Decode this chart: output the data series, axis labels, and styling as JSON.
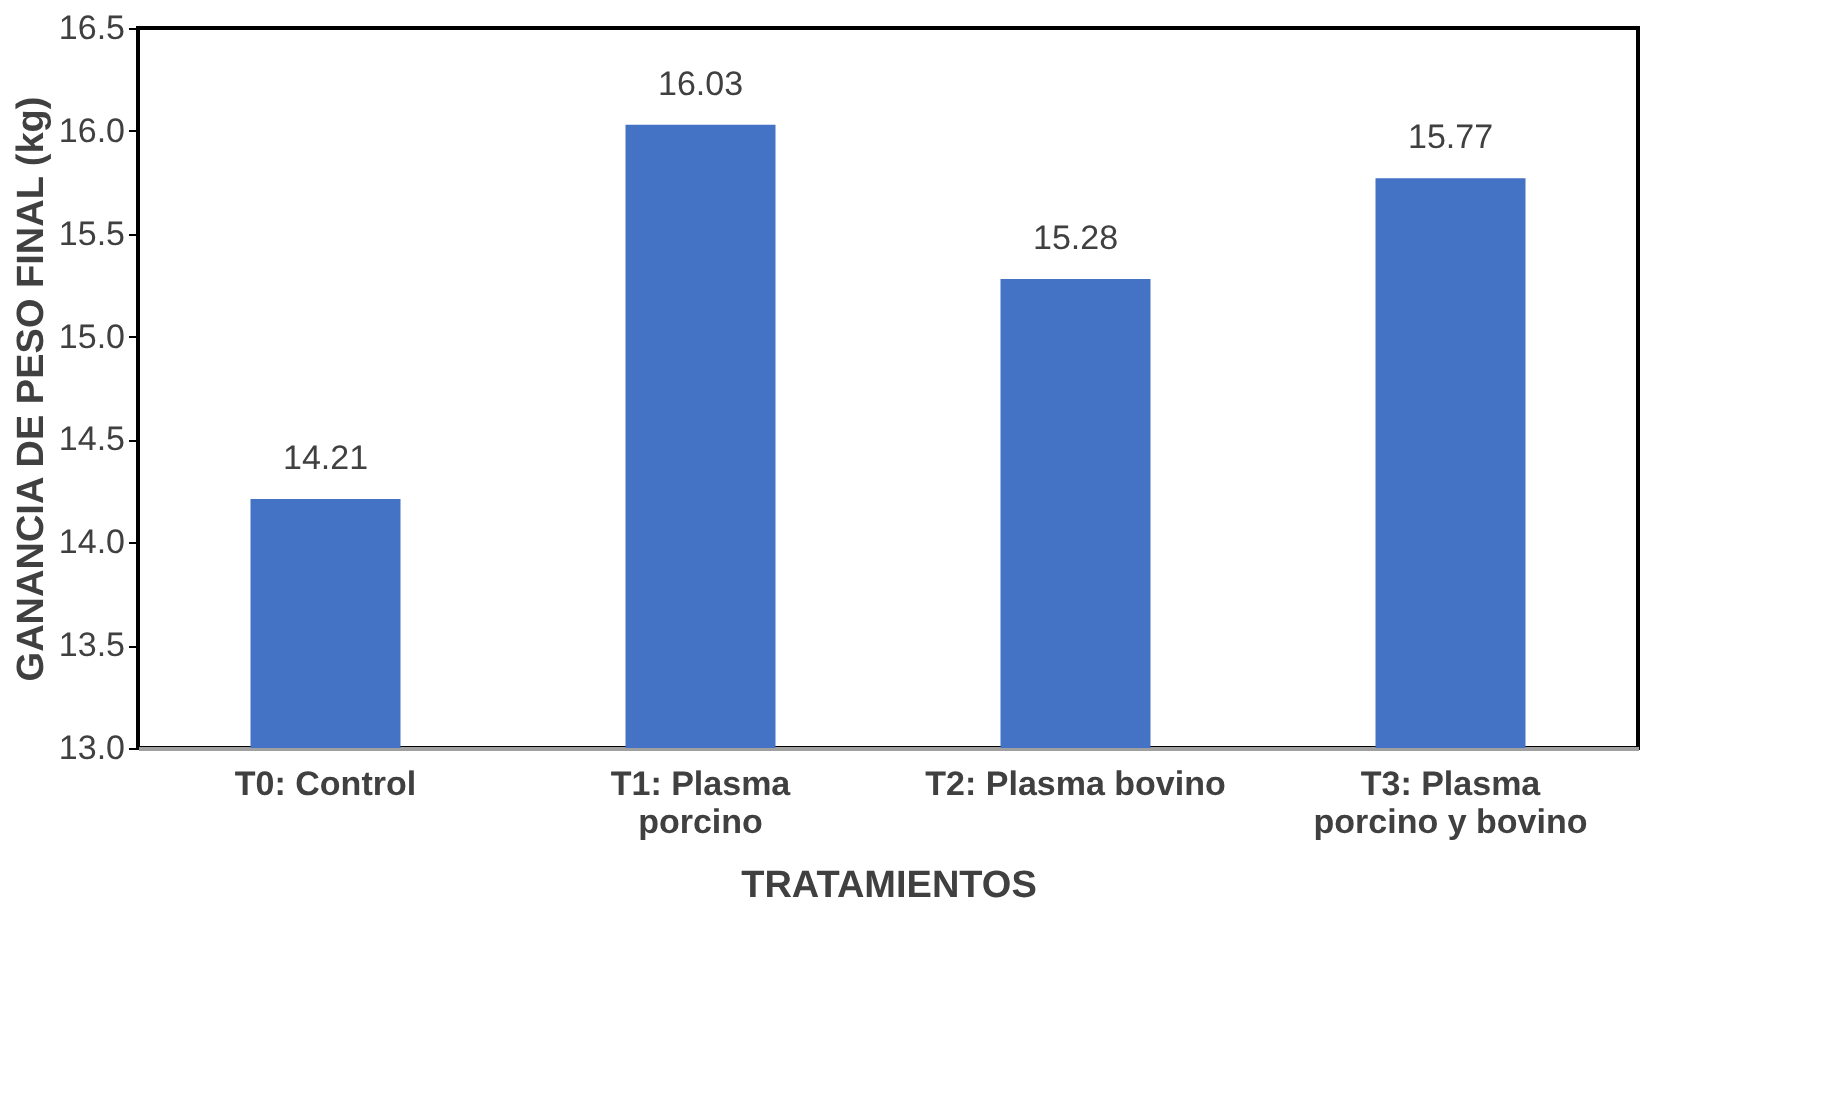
{
  "chart_data": {
    "type": "bar",
    "xlabel": "TRATAMIENTOS",
    "ylabel": "GANANCIA DE PESO FINAL (kg)",
    "categories": [
      "T0: Control",
      "T1: Plasma porcino",
      "T2: Plasma bovino",
      "T3: Plasma porcino y bovino"
    ],
    "values": [
      14.21,
      16.03,
      15.28,
      15.77
    ],
    "color": "#4472c4",
    "data_labels": true,
    "ylim": [
      13,
      16.5
    ],
    "yticks": [
      {
        "value": 13,
        "label": "13.0"
      },
      {
        "value": 13.5,
        "label": "13.5"
      },
      {
        "value": 14,
        "label": "14.0"
      },
      {
        "value": 14.5,
        "label": "14.5"
      },
      {
        "value": 15,
        "label": "15.0"
      },
      {
        "value": 15.5,
        "label": "15.5"
      },
      {
        "value": 16,
        "label": "16.0"
      },
      {
        "value": 16.5,
        "label": "16.5"
      }
    ],
    "grid": false
  }
}
